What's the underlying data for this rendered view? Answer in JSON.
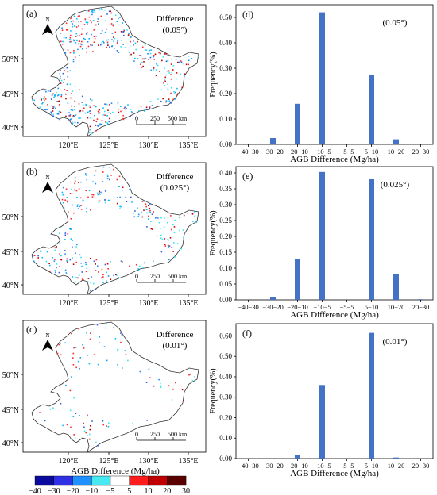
{
  "maps": [
    {
      "panel_label": "(a)",
      "title": "Difference",
      "resolution": "(0.05°)",
      "density": 1.0
    },
    {
      "panel_label": "(b)",
      "title": "Difference",
      "resolution": "(0.025°)",
      "density": 0.55
    },
    {
      "panel_label": "(c)",
      "title": "Difference",
      "resolution": "(0.01°)",
      "density": 0.22
    }
  ],
  "map_axes": {
    "lat_ticks": [
      "50°N",
      "45°N",
      "40°N"
    ],
    "lon_ticks": [
      "120°E",
      "125°E",
      "130°E",
      "135°E"
    ],
    "scale_bar": {
      "labels": [
        "0",
        "250",
        "500 km"
      ]
    },
    "north_label": "N"
  },
  "colorbar": {
    "title": "AGB Difference (Mg/ha)",
    "tick_labels": [
      "−40",
      "−30",
      "−20",
      "−10",
      "−5",
      "5",
      "10",
      "20",
      "30"
    ],
    "colors": [
      "#0a0a9e",
      "#2f2fe6",
      "#1e90ff",
      "#46e8f2",
      "#ffffff",
      "#ff1c1c",
      "#c00000",
      "#5a0000"
    ]
  },
  "chart_data": [
    {
      "type": "bar",
      "panel_label": "(d)",
      "annotation": "(0.05°)",
      "categories": [
        "−40−30",
        "−30−20",
        "−20−10",
        "−10−5",
        "−5−5",
        "5−10",
        "10−20",
        "20−30"
      ],
      "values": [
        0.0,
        0.025,
        0.16,
        0.52,
        0.0,
        0.275,
        0.02,
        0.0
      ],
      "xlabel": "AGB Difference (Mg/ha)",
      "ylabel": "Frequency(%)",
      "ylim": [
        0,
        0.55
      ],
      "ytick_labels": [
        "0.00",
        "0.10",
        "0.20",
        "0.30",
        "0.40",
        "0.50"
      ],
      "color": "#4472c4"
    },
    {
      "type": "bar",
      "panel_label": "(e)",
      "annotation": "(0.025°)",
      "categories": [
        "−40−30",
        "−30−20",
        "−20−10",
        "−10−5",
        "−5−5",
        "5−10",
        "10−20",
        "20−30"
      ],
      "values": [
        0.0,
        0.008,
        0.128,
        0.403,
        0.0,
        0.38,
        0.08,
        0.002
      ],
      "xlabel": "AGB Difference (Mg/ha)",
      "ylabel": "Frequency(%)",
      "ylim": [
        0,
        0.42
      ],
      "ytick_labels": [
        "0.00",
        "0.05",
        "0.10",
        "0.15",
        "0.20",
        "0.25",
        "0.30",
        "0.35",
        "0.40"
      ],
      "color": "#4472c4"
    },
    {
      "type": "bar",
      "panel_label": "(f)",
      "annotation": "(0.01°)",
      "categories": [
        "−40−30",
        "−30−20",
        "−20−10",
        "−10−5",
        "−5−5",
        "5−10",
        "10−20",
        "20−30"
      ],
      "values": [
        0.0,
        0.0,
        0.018,
        0.36,
        0.0,
        0.615,
        0.005,
        0.0
      ],
      "xlabel": "AGB Difference (Mg/ha)",
      "ylabel": "Frequency(%)",
      "ylim": [
        0,
        0.66
      ],
      "ytick_labels": [
        "0.00",
        "0.10",
        "0.20",
        "0.30",
        "0.40",
        "0.50",
        "0.60"
      ],
      "color": "#4472c4"
    }
  ]
}
